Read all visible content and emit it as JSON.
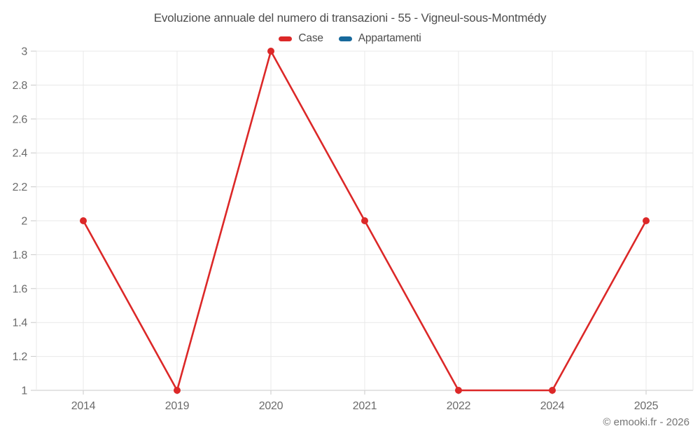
{
  "header": {
    "title": "Evoluzione annuale del numero di transazioni - 55 - Vigneul-sous-Montmédy"
  },
  "footer": {
    "credit": "© emooki.fr - 2026"
  },
  "colors": {
    "background": "#ffffff",
    "gridline": "#e8e8e8",
    "axis_line": "#c9c9c9",
    "tick_label": "#6b6b6b",
    "title_text": "#4d4d4d",
    "credit_text": "#757575",
    "series_case": "#dc2828",
    "series_appartamenti": "#17699c"
  },
  "chart_data": {
    "type": "line",
    "title": "Evoluzione annuale del numero di transazioni - 55 - Vigneul-sous-Montmédy",
    "categories": [
      "2014",
      "2019",
      "2020",
      "2021",
      "2022",
      "2024",
      "2025"
    ],
    "series": [
      {
        "name": "Case",
        "color": "#dc2828",
        "values": [
          2,
          1,
          3,
          2,
          1,
          1,
          2
        ]
      },
      {
        "name": "Appartamenti",
        "color": "#17699c",
        "values": []
      }
    ],
    "xlabel": "",
    "ylabel": "",
    "ylim": [
      1,
      3
    ],
    "ytick_step": 0.2,
    "yticks": [
      1,
      1.2,
      1.4,
      1.6,
      1.8,
      2,
      2.2,
      2.4,
      2.6,
      2.8,
      3
    ],
    "grid": true,
    "legend_position": "top",
    "marker_radius": 5
  }
}
